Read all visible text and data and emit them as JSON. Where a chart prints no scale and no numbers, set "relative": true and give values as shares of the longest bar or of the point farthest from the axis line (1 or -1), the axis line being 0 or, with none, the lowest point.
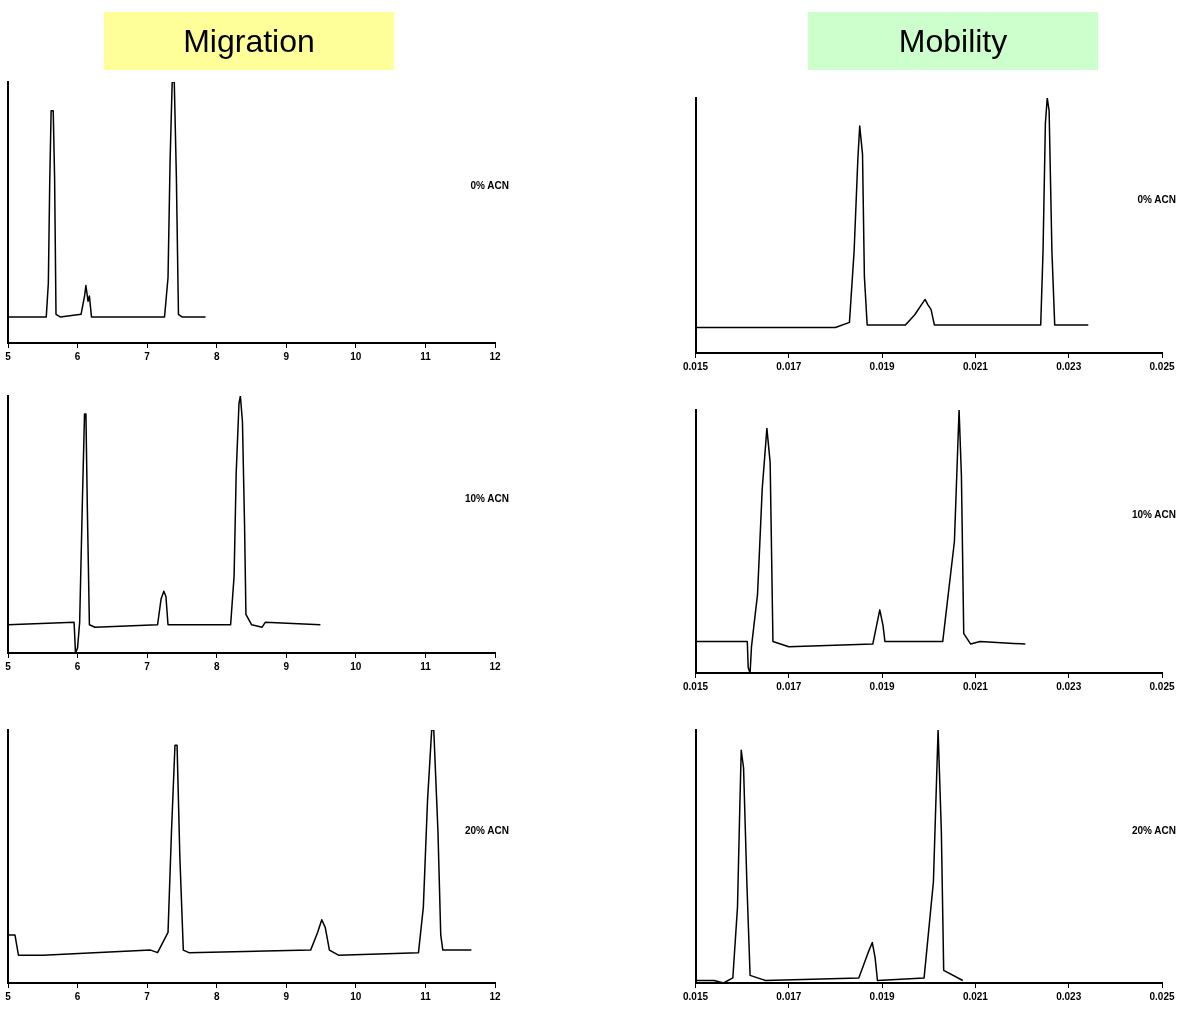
{
  "chart_data": [
    {
      "type": "line",
      "title": "Migration",
      "relative": true,
      "tick_labels": "x",
      "grid": false,
      "legend": false,
      "marker": "none",
      "line_style": "solid",
      "xlim": [
        5,
        12
      ],
      "xticks": [
        5,
        6,
        7,
        8,
        9,
        10,
        11,
        12
      ],
      "annotations": [
        "0% ACN"
      ],
      "series": [
        {
          "color": "#000000",
          "x": [
            5.0,
            5.55,
            5.58,
            5.6,
            5.62,
            5.65,
            5.67,
            5.69,
            5.75,
            6.05,
            6.1,
            6.12,
            6.15,
            6.17,
            6.2,
            7.25,
            7.3,
            7.33,
            7.36,
            7.39,
            7.42,
            7.45,
            7.5,
            7.84
          ],
          "values": [
            0.1,
            0.1,
            0.23,
            0.62,
            0.89,
            0.89,
            0.63,
            0.11,
            0.1,
            0.11,
            0.18,
            0.22,
            0.16,
            0.18,
            0.1,
            0.1,
            0.25,
            0.7,
            1.0,
            1.0,
            0.64,
            0.11,
            0.1,
            0.1
          ]
        }
      ]
    },
    {
      "type": "line",
      "title": "Mobility",
      "relative": true,
      "tick_labels": "x",
      "grid": false,
      "legend": false,
      "marker": "none",
      "line_style": "solid",
      "xlim": [
        0.015,
        0.025
      ],
      "xticks": [
        0.015,
        0.017,
        0.019,
        0.021,
        0.023,
        0.025
      ],
      "annotations": [
        "0% ACN"
      ],
      "series": [
        {
          "color": "#000000",
          "x": [
            0.015,
            0.018,
            0.0183,
            0.0184,
            0.01848,
            0.01852,
            0.01858,
            0.01862,
            0.01868,
            0.0195,
            0.0197,
            0.01992,
            0.01998,
            0.02005,
            0.02012,
            0.0224,
            0.02245,
            0.0225,
            0.02254,
            0.02258,
            0.02264,
            0.0227,
            0.02342
          ],
          "values": [
            0.1,
            0.1,
            0.12,
            0.4,
            0.76,
            0.89,
            0.78,
            0.3,
            0.11,
            0.11,
            0.15,
            0.21,
            0.19,
            0.17,
            0.11,
            0.11,
            0.4,
            0.9,
            1.0,
            0.95,
            0.4,
            0.11,
            0.11
          ]
        }
      ]
    },
    {
      "type": "line",
      "relative": true,
      "tick_labels": "x",
      "grid": false,
      "legend": false,
      "marker": "none",
      "line_style": "solid",
      "xlim": [
        5,
        12
      ],
      "xticks": [
        5,
        6,
        7,
        8,
        9,
        10,
        11,
        12
      ],
      "annotations": [
        "10% ACN"
      ],
      "series": [
        {
          "color": "#000000",
          "x": [
            5.0,
            5.95,
            5.97,
            6.0,
            6.03,
            6.07,
            6.1,
            6.12,
            6.14,
            6.17,
            6.25,
            7.15,
            7.2,
            7.24,
            7.27,
            7.3,
            8.2,
            8.25,
            8.28,
            8.32,
            8.34,
            8.37,
            8.4,
            8.42,
            8.5,
            8.65,
            8.7,
            9.49
          ],
          "values": [
            0.11,
            0.12,
            0,
            0.02,
            0.12,
            0.6,
            0.93,
            0.93,
            0.57,
            0.11,
            0.1,
            0.11,
            0.21,
            0.24,
            0.22,
            0.11,
            0.11,
            0.3,
            0.7,
            0.97,
            1.0,
            0.9,
            0.5,
            0.15,
            0.11,
            0.1,
            0.12,
            0.11
          ]
        }
      ]
    },
    {
      "type": "line",
      "relative": true,
      "tick_labels": "x",
      "grid": false,
      "legend": false,
      "marker": "none",
      "line_style": "solid",
      "xlim": [
        0.015,
        0.025
      ],
      "xticks": [
        0.015,
        0.017,
        0.019,
        0.021,
        0.023,
        0.025
      ],
      "annotations": [
        "10% ACN"
      ],
      "series": [
        {
          "color": "#000000",
          "x": [
            0.015,
            0.01611,
            0.01613,
            0.01617,
            0.0162,
            0.01633,
            0.01643,
            0.01653,
            0.0166,
            0.01666,
            0.017,
            0.0188,
            0.01895,
            0.01902,
            0.01906,
            0.0203,
            0.02055,
            0.02065,
            0.0207,
            0.02075,
            0.0209,
            0.0211,
            0.02207
          ],
          "values": [
            0.12,
            0.12,
            0.02,
            0,
            0.1,
            0.3,
            0.7,
            0.93,
            0.8,
            0.12,
            0.1,
            0.11,
            0.24,
            0.18,
            0.12,
            0.12,
            0.5,
            1.0,
            0.75,
            0.15,
            0.11,
            0.12,
            0.11
          ]
        }
      ]
    },
    {
      "type": "line",
      "relative": true,
      "tick_labels": "x",
      "grid": false,
      "legend": false,
      "marker": "none",
      "line_style": "solid",
      "xlim": [
        5,
        12
      ],
      "xticks": [
        5,
        6,
        7,
        8,
        9,
        10,
        11,
        12
      ],
      "annotations": [
        "20% ACN"
      ],
      "series": [
        {
          "color": "#000000",
          "x": [
            5.0,
            5.1,
            5.15,
            5.5,
            7.05,
            7.15,
            7.3,
            7.35,
            7.4,
            7.43,
            7.47,
            7.52,
            7.6,
            9.35,
            9.45,
            9.51,
            9.56,
            9.62,
            9.75,
            10.9,
            10.97,
            11.03,
            11.09,
            11.12,
            11.18,
            11.22,
            11.25,
            11.66
          ],
          "values": [
            0.19,
            0.19,
            0.11,
            0.11,
            0.13,
            0.12,
            0.2,
            0.6,
            0.94,
            0.94,
            0.5,
            0.13,
            0.12,
            0.13,
            0.2,
            0.25,
            0.22,
            0.13,
            0.11,
            0.12,
            0.3,
            0.72,
            1.0,
            1.0,
            0.6,
            0.19,
            0.13,
            0.13
          ]
        }
      ]
    },
    {
      "type": "line",
      "relative": true,
      "tick_labels": "x",
      "grid": false,
      "legend": false,
      "marker": "none",
      "line_style": "solid",
      "xlim": [
        0.015,
        0.025
      ],
      "xticks": [
        0.015,
        0.017,
        0.019,
        0.021,
        0.023,
        0.025
      ],
      "annotations": [
        "20% ACN"
      ],
      "series": [
        {
          "color": "#000000",
          "x": [
            0.015,
            0.0154,
            0.0156,
            0.0158,
            0.0159,
            0.01595,
            0.01598,
            0.01603,
            0.0161,
            0.01617,
            0.0165,
            0.0185,
            0.0187,
            0.01879,
            0.01885,
            0.0189,
            0.0199,
            0.0201,
            0.0202,
            0.02027,
            0.02032,
            0.02073
          ],
          "values": [
            0.01,
            0.01,
            0.0,
            0.02,
            0.3,
            0.7,
            0.92,
            0.85,
            0.4,
            0.03,
            0.01,
            0.02,
            0.12,
            0.16,
            0.1,
            0.01,
            0.02,
            0.4,
            1.0,
            0.6,
            0.05,
            0.01
          ]
        }
      ]
    }
  ]
}
